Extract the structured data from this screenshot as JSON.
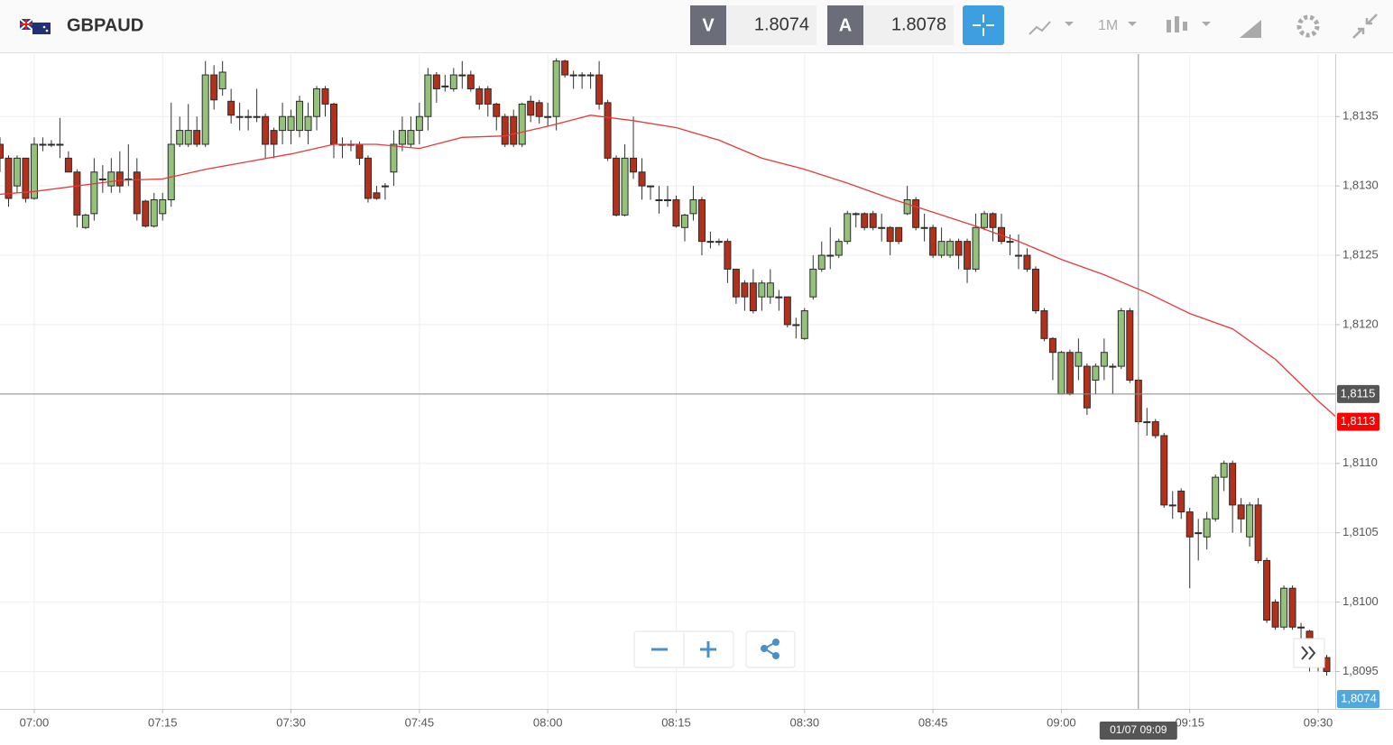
{
  "header": {
    "symbol": "GBPAUD",
    "bid_label": "V",
    "bid": "1.8074",
    "ask_label": "A",
    "ask": "1.8078",
    "timeframe": "1M"
  },
  "chart_data": {
    "type": "candlestick",
    "x": [
      "06:56",
      "06:57",
      "06:58",
      "06:59",
      "07:00",
      "07:01",
      "07:02",
      "07:03",
      "07:04",
      "07:05",
      "07:06",
      "07:07",
      "07:08",
      "07:09",
      "07:10",
      "07:11",
      "07:12",
      "07:13",
      "07:14",
      "07:15",
      "07:16",
      "07:17",
      "07:18",
      "07:19",
      "07:20",
      "07:21",
      "07:22",
      "07:23",
      "07:24",
      "07:25",
      "07:26",
      "07:27",
      "07:28",
      "07:29",
      "07:30",
      "07:31",
      "07:32",
      "07:33",
      "07:34",
      "07:35",
      "07:36",
      "07:37",
      "07:38",
      "07:39",
      "07:40",
      "07:41",
      "07:42",
      "07:43",
      "07:44",
      "07:45",
      "07:46",
      "07:47",
      "07:48",
      "07:49",
      "07:50",
      "07:51",
      "07:52",
      "07:53",
      "07:54",
      "07:55",
      "07:56",
      "07:57",
      "07:58",
      "07:59",
      "08:00",
      "08:01",
      "08:02",
      "08:03",
      "08:04",
      "08:05",
      "08:06",
      "08:07",
      "08:08",
      "08:09",
      "08:10",
      "08:11",
      "08:12",
      "08:13",
      "08:14",
      "08:15",
      "08:16",
      "08:17",
      "08:18",
      "08:19",
      "08:20",
      "08:21",
      "08:22",
      "08:23",
      "08:24",
      "08:25",
      "08:26",
      "08:27",
      "08:28",
      "08:29",
      "08:30",
      "08:31",
      "08:32",
      "08:33",
      "08:34",
      "08:35",
      "08:36",
      "08:37",
      "08:38",
      "08:39",
      "08:40",
      "08:41",
      "08:42",
      "08:43",
      "08:44",
      "08:45",
      "08:46",
      "08:47",
      "08:48",
      "08:49",
      "08:50",
      "08:51",
      "08:52",
      "08:53",
      "08:54",
      "08:55",
      "08:56",
      "08:57",
      "08:58",
      "08:59",
      "09:00",
      "09:01",
      "09:02",
      "09:03",
      "09:04",
      "09:05",
      "09:06",
      "09:07",
      "09:08",
      "09:09",
      "09:10",
      "09:11",
      "09:12",
      "09:13",
      "09:14",
      "09:15",
      "09:16",
      "09:17",
      "09:18",
      "09:19",
      "09:20",
      "09:21",
      "09:22",
      "09:23",
      "09:24",
      "09:25",
      "09:26",
      "09:27",
      "09:28",
      "09:29",
      "09:30",
      "09:31"
    ],
    "open": [
      1.8133,
      1.8132,
      1.813,
      1.8132,
      1.81291,
      1.8133,
      1.8133,
      1.8133,
      1.8132,
      1.8131,
      1.8127,
      1.8128,
      1.81305,
      1.813,
      1.8131,
      1.81305,
      1.8131,
      1.81289,
      1.81271,
      1.8128,
      1.8129,
      1.8133,
      1.8133,
      1.8134,
      1.8133,
      1.8138,
      1.8137,
      1.81361,
      1.8135,
      1.8135,
      1.8135,
      1.8135,
      1.8134,
      1.8134,
      1.8134,
      1.8134,
      1.8134,
      1.8135,
      1.8137,
      1.81359,
      1.8133,
      1.8133,
      1.8133,
      1.8132,
      1.81295,
      1.813,
      1.8131,
      1.8133,
      1.8133,
      1.8134,
      1.8135,
      1.8138,
      1.81372,
      1.8137,
      1.8138,
      1.8138,
      1.8137,
      1.8137,
      1.81359,
      1.8135,
      1.8135,
      1.8133,
      1.81361,
      1.8136,
      1.8135,
      1.8135,
      1.8139,
      1.8138,
      1.8138,
      1.8138,
      1.8138,
      1.8136,
      1.8132,
      1.81279,
      1.8132,
      1.8131,
      1.813,
      1.8129,
      1.8129,
      1.8129,
      1.8127,
      1.8128,
      1.8129,
      1.8126,
      1.8126,
      1.8126,
      1.8124,
      1.8123,
      1.8123,
      1.8122,
      1.8122,
      1.8122,
      1.8122,
      1.812,
      1.8119,
      1.8122,
      1.8124,
      1.8125,
      1.8125,
      1.8126,
      1.8128,
      1.8128,
      1.8128,
      1.8127,
      1.8127,
      1.8127,
      1.8128,
      1.8129,
      1.8127,
      1.8127,
      1.8125,
      1.8125,
      1.8126,
      1.8126,
      1.8124,
      1.8127,
      1.8128,
      1.8127,
      1.8126,
      1.8125,
      1.8125,
      1.8124,
      1.8121,
      1.8119,
      1.8115,
      1.8118,
      1.8117,
      1.8117,
      1.8116,
      1.8117,
      1.8117,
      1.8117,
      1.8121,
      1.8116,
      1.8113,
      1.8113,
      1.8112,
      1.8107,
      1.8108,
      1.81065,
      1.8105,
      1.81047,
      1.8106,
      1.8109,
      1.811,
      1.8107,
      1.81047,
      1.8107,
      1.8103,
      1.81,
      1.80982,
      1.8101,
      1.80982,
      1.80979,
      1.8096,
      1.8096
    ],
    "high": [
      1.81335,
      1.81322,
      1.81322,
      1.8132,
      1.81335,
      1.81335,
      1.81333,
      1.81349,
      1.81325,
      1.81312,
      1.8128,
      1.8132,
      1.81315,
      1.8132,
      1.81325,
      1.8133,
      1.8132,
      1.8129,
      1.81295,
      1.81295,
      1.8136,
      1.8135,
      1.81359,
      1.8135,
      1.8139,
      1.81387,
      1.8139,
      1.8137,
      1.8136,
      1.81355,
      1.8137,
      1.81352,
      1.81342,
      1.8136,
      1.81355,
      1.81365,
      1.8136,
      1.81372,
      1.81372,
      1.8136,
      1.81335,
      1.81333,
      1.81332,
      1.81322,
      1.813,
      1.81302,
      1.8134,
      1.8135,
      1.8135,
      1.8136,
      1.81385,
      1.81382,
      1.8138,
      1.81385,
      1.8139,
      1.81383,
      1.81372,
      1.81372,
      1.8136,
      1.81352,
      1.81355,
      1.8136,
      1.81365,
      1.81362,
      1.8136,
      1.81392,
      1.81391,
      1.81383,
      1.81382,
      1.81382,
      1.8139,
      1.81362,
      1.81322,
      1.8133,
      1.8135,
      1.8132,
      1.813,
      1.813,
      1.813,
      1.81293,
      1.8128,
      1.813,
      1.81292,
      1.81267,
      1.81262,
      1.81262,
      1.8124,
      1.81232,
      1.8124,
      1.81232,
      1.8124,
      1.81225,
      1.8122,
      1.81205,
      1.81212,
      1.8125,
      1.8126,
      1.8127,
      1.81262,
      1.81282,
      1.81281,
      1.81281,
      1.81282,
      1.8128,
      1.81271,
      1.8127,
      1.813,
      1.81292,
      1.8128,
      1.81272,
      1.8127,
      1.81262,
      1.81262,
      1.81262,
      1.8128,
      1.81282,
      1.81281,
      1.8128,
      1.81265,
      1.81265,
      1.81255,
      1.81242,
      1.81212,
      1.81191,
      1.81181,
      1.81182,
      1.8119,
      1.81172,
      1.81172,
      1.8119,
      1.81172,
      1.81212,
      1.81212,
      1.81162,
      1.8114,
      1.81132,
      1.81122,
      1.8108,
      1.81082,
      1.81068,
      1.8106,
      1.81065,
      1.81092,
      1.81102,
      1.81102,
      1.81075,
      1.81072,
      1.81075,
      1.81032,
      1.81002,
      1.81012,
      1.81012,
      1.80985,
      1.8098,
      1.80965,
      1.80962
    ],
    "low": [
      1.8131,
      1.81285,
      1.81295,
      1.81288,
      1.8129,
      1.81325,
      1.81328,
      1.8132,
      1.8131,
      1.8127,
      1.81269,
      1.81275,
      1.81295,
      1.81295,
      1.81295,
      1.813,
      1.81275,
      1.8127,
      1.8127,
      1.81275,
      1.81285,
      1.81328,
      1.81328,
      1.81328,
      1.81328,
      1.81355,
      1.81365,
      1.81345,
      1.8134,
      1.8134,
      1.81346,
      1.8132,
      1.8132,
      1.8133,
      1.8133,
      1.81335,
      1.8133,
      1.8134,
      1.8135,
      1.8132,
      1.8132,
      1.81325,
      1.81315,
      1.81288,
      1.8129,
      1.8129,
      1.813,
      1.81325,
      1.81328,
      1.8133,
      1.8134,
      1.8136,
      1.81368,
      1.81368,
      1.8137,
      1.81368,
      1.81355,
      1.8135,
      1.8134,
      1.81328,
      1.81328,
      1.81328,
      1.81346,
      1.81345,
      1.81343,
      1.8134,
      1.81378,
      1.8137,
      1.8137,
      1.8137,
      1.81355,
      1.81318,
      1.81278,
      1.81278,
      1.81305,
      1.8129,
      1.8129,
      1.8128,
      1.81285,
      1.8127,
      1.8126,
      1.81275,
      1.8125,
      1.81255,
      1.81257,
      1.8123,
      1.81215,
      1.8121,
      1.81208,
      1.8121,
      1.81215,
      1.8121,
      1.81198,
      1.8119,
      1.81189,
      1.81218,
      1.81238,
      1.8124,
      1.81248,
      1.81258,
      1.8127,
      1.81268,
      1.81268,
      1.8126,
      1.8125,
      1.81258,
      1.81279,
      1.81268,
      1.8126,
      1.81248,
      1.81248,
      1.81248,
      1.8124,
      1.8123,
      1.81238,
      1.81268,
      1.8126,
      1.81258,
      1.8125,
      1.8124,
      1.81238,
      1.81208,
      1.81188,
      1.8116,
      1.8115,
      1.81149,
      1.8116,
      1.81135,
      1.8115,
      1.8116,
      1.8115,
      1.81168,
      1.81158,
      1.81128,
      1.8112,
      1.81118,
      1.81068,
      1.8106,
      1.8106,
      1.8101,
      1.8103,
      1.81038,
      1.81058,
      1.8108,
      1.8105,
      1.8105,
      1.8104,
      1.81028,
      1.80985,
      1.8098,
      1.8098,
      1.8098,
      1.8097,
      1.8095,
      1.8095,
      1.80947
    ],
    "close": [
      1.8132,
      1.81291,
      1.8132,
      1.81291,
      1.8133,
      1.8133,
      1.8133,
      1.8133,
      1.8131,
      1.81279,
      1.81279,
      1.8131,
      1.81305,
      1.8131,
      1.813,
      1.81305,
      1.8128,
      1.81271,
      1.8129,
      1.8129,
      1.8133,
      1.8134,
      1.8134,
      1.8133,
      1.8138,
      1.81362,
      1.81382,
      1.81351,
      1.8135,
      1.8135,
      1.8135,
      1.8133,
      1.8133,
      1.8135,
      1.8135,
      1.81361,
      1.8135,
      1.8137,
      1.81359,
      1.8133,
      1.8133,
      1.8133,
      1.8132,
      1.81291,
      1.81291,
      1.813,
      1.8133,
      1.8134,
      1.8134,
      1.8135,
      1.8138,
      1.8137,
      1.81372,
      1.8138,
      1.8138,
      1.8137,
      1.81359,
      1.81359,
      1.8135,
      1.8133,
      1.8133,
      1.81359,
      1.81351,
      1.8135,
      1.8135,
      1.8139,
      1.8138,
      1.8138,
      1.8138,
      1.8138,
      1.81359,
      1.8132,
      1.81279,
      1.8132,
      1.8131,
      1.813,
      1.813,
      1.8129,
      1.8129,
      1.81271,
      1.81279,
      1.8129,
      1.8126,
      1.8126,
      1.8126,
      1.8124,
      1.8122,
      1.8122,
      1.8121,
      1.8123,
      1.8123,
      1.8122,
      1.812,
      1.812,
      1.8121,
      1.8124,
      1.8125,
      1.8125,
      1.8126,
      1.8128,
      1.8128,
      1.8127,
      1.8127,
      1.8127,
      1.8126,
      1.8126,
      1.8129,
      1.8127,
      1.8127,
      1.8125,
      1.8126,
      1.8126,
      1.8125,
      1.8124,
      1.8127,
      1.8128,
      1.8127,
      1.8126,
      1.8126,
      1.8125,
      1.8124,
      1.8121,
      1.8119,
      1.8118,
      1.8118,
      1.8115,
      1.8118,
      1.8114,
      1.8117,
      1.8118,
      1.8117,
      1.8121,
      1.8116,
      1.8113,
      1.8113,
      1.8112,
      1.8107,
      1.8107,
      1.81065,
      1.81047,
      1.8105,
      1.8106,
      1.8109,
      1.811,
      1.8107,
      1.8106,
      1.8107,
      1.8103,
      1.80987,
      1.80982,
      1.8101,
      1.80982,
      1.80982,
      1.80962,
      1.8096,
      1.8095
    ],
    "up_color": "#95c27a",
    "down_color": "#b3301b",
    "ma": {
      "type": "line",
      "color": "#e8393a",
      "x": [
        "06:56",
        "07:00",
        "07:10",
        "07:15",
        "07:20",
        "07:30",
        "07:35",
        "07:40",
        "07:45",
        "07:50",
        "07:55",
        "08:00",
        "08:05",
        "08:10",
        "08:15",
        "08:20",
        "08:25",
        "08:30",
        "08:35",
        "08:40",
        "08:45",
        "08:50",
        "08:55",
        "09:00",
        "09:05",
        "09:10",
        "09:15",
        "09:20",
        "09:25",
        "09:30",
        "09:32"
      ],
      "values": [
        1.81294,
        1.81296,
        1.81304,
        1.81305,
        1.81312,
        1.81323,
        1.8133,
        1.8133,
        1.81327,
        1.81335,
        1.81336,
        1.81343,
        1.81351,
        1.81347,
        1.81342,
        1.81333,
        1.8132,
        1.81312,
        1.81302,
        1.81291,
        1.81281,
        1.81271,
        1.8126,
        1.81247,
        1.81236,
        1.81223,
        1.81208,
        1.81197,
        1.81175,
        1.81145,
        1.81134
      ]
    },
    "xlim": [
      "06:56",
      "09:32"
    ],
    "xticks": [
      "07:00",
      "07:15",
      "07:30",
      "07:45",
      "08:00",
      "08:15",
      "08:30",
      "08:45",
      "09:00",
      "09:15",
      "09:30"
    ],
    "ylim": [
      1.80923,
      1.81395
    ],
    "yticks": [
      {
        "value": 1.8095,
        "label": "1,8095"
      },
      {
        "value": 1.81,
        "label": "1,8100"
      },
      {
        "value": 1.8105,
        "label": "1,8105"
      },
      {
        "value": 1.811,
        "label": "1,8110"
      },
      {
        "value": 1.8115,
        "label": "1,8115"
      },
      {
        "value": 1.812,
        "label": "1,8120"
      },
      {
        "value": 1.8125,
        "label": "1,8125"
      },
      {
        "value": 1.813,
        "label": "1,8130"
      },
      {
        "value": 1.8135,
        "label": "1,8135"
      }
    ],
    "grid": true,
    "crosshair": {
      "y": {
        "value": 1.8115,
        "label": "1,8115"
      },
      "x": {
        "value": "09:09",
        "label": "01/07 09:09"
      }
    },
    "last_price": {
      "value": 1.8113,
      "label": "1,8113"
    },
    "bid_tag": "1,8074"
  }
}
